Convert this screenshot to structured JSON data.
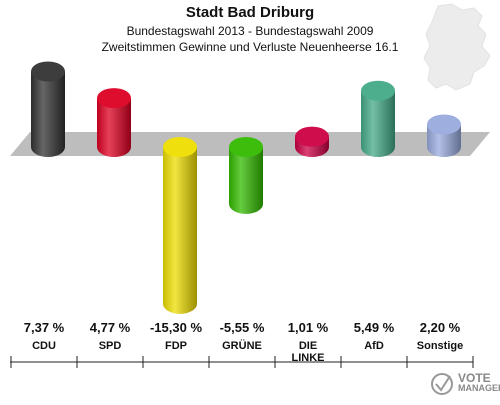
{
  "header": {
    "title": "Stadt Bad Driburg",
    "subtitle": "Bundestagswahl 2013 - Bundestagswahl 2009",
    "subtitle2": "Zweitstimmen Gewinne und Verluste Neuenheerse 16.1"
  },
  "chart_data": {
    "type": "bar",
    "categories": [
      "CDU",
      "SPD",
      "FDP",
      "GRÜNE",
      "DIE LINKE",
      "AfD",
      "Sonstige"
    ],
    "values": [
      7.37,
      4.77,
      -15.3,
      -5.55,
      1.01,
      5.49,
      2.2
    ],
    "value_labels": [
      "7,37 %",
      "4,77 %",
      "-15,30 %",
      "-5,55 %",
      "1,01 %",
      "5,49 %",
      "2,20 %"
    ],
    "category_labels": [
      "CDU",
      "SPD",
      "FDP",
      "GRÜNE",
      "DIE\nLINKE",
      "AfD",
      "Sonstige"
    ],
    "colors": [
      "#333333",
      "#dd0022",
      "#eedd00",
      "#33bb00",
      "#cc0044",
      "#44aa88",
      "#99aadd"
    ],
    "ylim": [
      -16,
      9
    ],
    "title": "Stadt Bad Driburg",
    "xlabel": "",
    "ylabel": "",
    "grid": false,
    "legend": "none"
  },
  "logo": {
    "line1": "VOTE",
    "line2": "MANAGER",
    "icon": "vote-manager-logo-icon"
  },
  "background": {
    "icon": "germany-map-icon"
  }
}
